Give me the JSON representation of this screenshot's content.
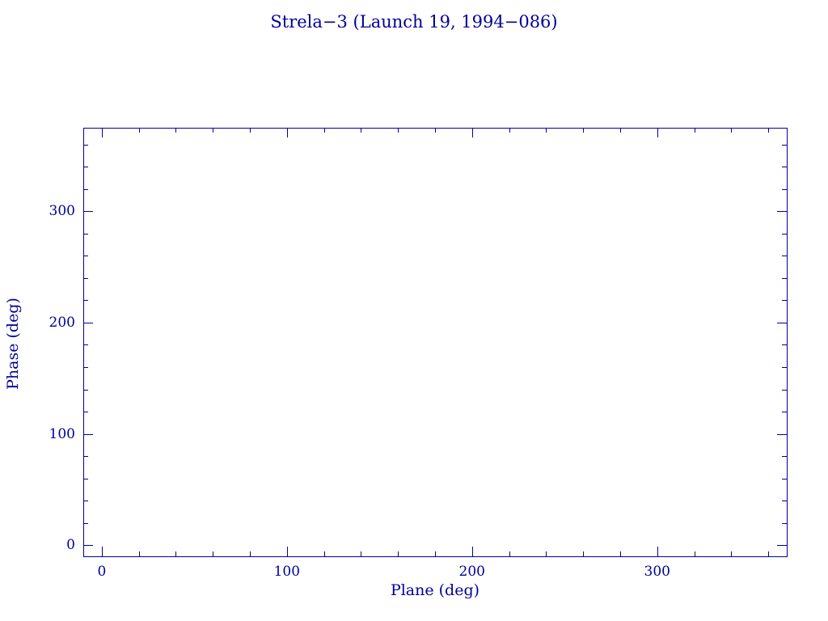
{
  "chart_data": {
    "type": "scatter",
    "title": "Strela−3 (Launch 19, 1994−086)",
    "xlabel": "Plane (deg)",
    "ylabel": "Phase (deg)",
    "xlim": [
      -10,
      370
    ],
    "ylim": [
      -10,
      375
    ],
    "xticks": [
      0,
      100,
      200,
      300
    ],
    "yticks": [
      0,
      100,
      200,
      300
    ],
    "x_minor_tick_interval": 20,
    "y_minor_tick_interval": 20,
    "grid": false,
    "legend": "none",
    "axis_color": "#000099",
    "background_color": "#ffffff",
    "series": []
  }
}
